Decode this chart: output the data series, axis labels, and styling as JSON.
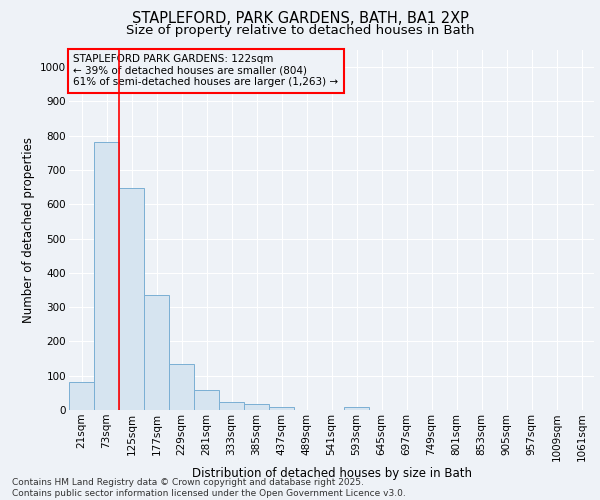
{
  "title": "STAPLEFORD, PARK GARDENS, BATH, BA1 2XP",
  "subtitle": "Size of property relative to detached houses in Bath",
  "xlabel": "Distribution of detached houses by size in Bath",
  "ylabel": "Number of detached properties",
  "bar_color": "#d6e4f0",
  "bar_edge_color": "#7aafd4",
  "categories": [
    "21sqm",
    "73sqm",
    "125sqm",
    "177sqm",
    "229sqm",
    "281sqm",
    "333sqm",
    "385sqm",
    "437sqm",
    "489sqm",
    "541sqm",
    "593sqm",
    "645sqm",
    "697sqm",
    "749sqm",
    "801sqm",
    "853sqm",
    "905sqm",
    "957sqm",
    "1009sqm",
    "1061sqm"
  ],
  "values": [
    82,
    782,
    648,
    335,
    133,
    59,
    22,
    18,
    10,
    0,
    0,
    10,
    0,
    0,
    0,
    0,
    0,
    0,
    0,
    0,
    0
  ],
  "ylim": [
    0,
    1050
  ],
  "yticks": [
    0,
    100,
    200,
    300,
    400,
    500,
    600,
    700,
    800,
    900,
    1000
  ],
  "red_line_index": 2,
  "annotation_box_text": "STAPLEFORD PARK GARDENS: 122sqm\n← 39% of detached houses are smaller (804)\n61% of semi-detached houses are larger (1,263) →",
  "footnote": "Contains HM Land Registry data © Crown copyright and database right 2025.\nContains public sector information licensed under the Open Government Licence v3.0.",
  "background_color": "#eef2f7",
  "plot_bg_color": "#eef2f7",
  "grid_color": "#ffffff",
  "title_fontsize": 10.5,
  "subtitle_fontsize": 9.5,
  "axis_label_fontsize": 8.5,
  "tick_fontsize": 7.5,
  "annotation_fontsize": 7.5,
  "footnote_fontsize": 6.5
}
